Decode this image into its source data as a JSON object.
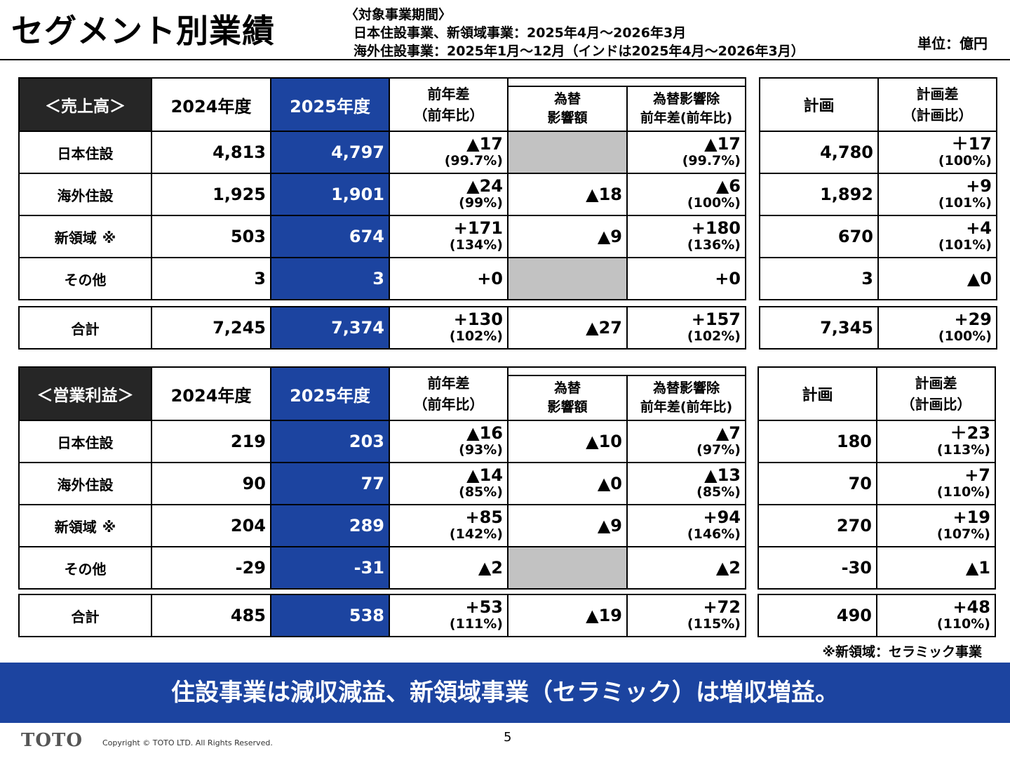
{
  "header": {
    "title": "セグメント別業績",
    "period_heading": "〈対象事業期間〉",
    "period_line1": "日本住設事業、新領域事業：2025年4月～2026年3月",
    "period_line2": "海外住設事業：2025年1月～12月（インドは2025年4月～2026年3月）",
    "unit": "単位：億円"
  },
  "columns": {
    "fy2024": "2024年度",
    "fy2025": "2025年度",
    "yoy_line1": "前年差",
    "yoy_line2": "（前年比）",
    "fx_line1": "為替",
    "fx_line2": "影響額",
    "exfx_line1": "為替影響除",
    "exfx_line2": "前年差(前年比)",
    "plan": "計画",
    "vsplan_line1": "計画差",
    "vsplan_line2": "（計画比）"
  },
  "sales": {
    "label": "＜売上高＞",
    "rows": [
      {
        "name": "日本住設",
        "note": "",
        "fy2024": "4,813",
        "fy2025": "4,797",
        "yoy": "▲17",
        "yoy_pct": "(99.7%)",
        "fx": "",
        "exfx": "▲17",
        "exfx_pct": "(99.7%)",
        "plan": "4,780",
        "vsplan": "＋17",
        "vsplan_pct": "(100%)"
      },
      {
        "name": "海外住設",
        "note": "",
        "fy2024": "1,925",
        "fy2025": "1,901",
        "yoy": "▲24",
        "yoy_pct": "(99%)",
        "fx": "▲18",
        "exfx": "▲6",
        "exfx_pct": "(100%)",
        "plan": "1,892",
        "vsplan": "+9",
        "vsplan_pct": "(101%)"
      },
      {
        "name": "新領域",
        "note": "※",
        "fy2024": "503",
        "fy2025": "674",
        "yoy": "+171",
        "yoy_pct": "(134%)",
        "fx": "▲9",
        "exfx": "+180",
        "exfx_pct": "(136%)",
        "plan": "670",
        "vsplan": "+4",
        "vsplan_pct": "(101%)"
      },
      {
        "name": "その他",
        "note": "",
        "fy2024": "3",
        "fy2025": "3",
        "yoy": "+0",
        "yoy_pct": "",
        "fx": "",
        "exfx": "+0",
        "exfx_pct": "",
        "plan": "3",
        "vsplan": "▲0",
        "vsplan_pct": ""
      }
    ],
    "total": {
      "name": "合計",
      "fy2024": "7,245",
      "fy2025": "7,374",
      "yoy": "+130",
      "yoy_pct": "(102%)",
      "fx": "▲27",
      "exfx": "+157",
      "exfx_pct": "(102%)",
      "plan": "7,345",
      "vsplan": "+29",
      "vsplan_pct": "(100%)"
    }
  },
  "profit": {
    "label": "＜営業利益＞",
    "rows": [
      {
        "name": "日本住設",
        "note": "",
        "fy2024": "219",
        "fy2025": "203",
        "yoy": "▲16",
        "yoy_pct": "(93%)",
        "fx": "▲10",
        "exfx": "▲7",
        "exfx_pct": "(97%)",
        "plan": "180",
        "vsplan": "＋23",
        "vsplan_pct": "(113%)"
      },
      {
        "name": "海外住設",
        "note": "",
        "fy2024": "90",
        "fy2025": "77",
        "yoy": "▲14",
        "yoy_pct": "(85%)",
        "fx": "▲0",
        "exfx": "▲13",
        "exfx_pct": "(85%)",
        "plan": "70",
        "vsplan": "+7",
        "vsplan_pct": "(110%)"
      },
      {
        "name": "新領域",
        "note": "※",
        "fy2024": "204",
        "fy2025": "289",
        "yoy": "+85",
        "yoy_pct": "(142%)",
        "fx": "▲9",
        "exfx": "+94",
        "exfx_pct": "(146%)",
        "plan": "270",
        "vsplan": "+19",
        "vsplan_pct": "(107%)"
      },
      {
        "name": "その他",
        "note": "",
        "fy2024": "-29",
        "fy2025": "-31",
        "yoy": "▲2",
        "yoy_pct": "",
        "fx": "",
        "exfx": "▲2",
        "exfx_pct": "",
        "plan": "-30",
        "vsplan": "▲1",
        "vsplan_pct": ""
      }
    ],
    "total": {
      "name": "合計",
      "fy2024": "485",
      "fy2025": "538",
      "yoy": "+53",
      "yoy_pct": "(111%)",
      "fx": "▲19",
      "exfx": "+72",
      "exfx_pct": "(115%)",
      "plan": "490",
      "vsplan": "+48",
      "vsplan_pct": "(110%)"
    }
  },
  "footnote": "※新領域：セラミック事業",
  "banner": "住設事業は減収減益、新領域事業（セラミック）は増収増益。",
  "footer": {
    "logo": "TOTO",
    "copyright": "Copyright © TOTO LTD. All Rights Reserved.",
    "page": "5"
  },
  "colors": {
    "accent_blue": "#1c44a0",
    "header_black": "#262626",
    "blank_gray": "#c2c2c2"
  }
}
